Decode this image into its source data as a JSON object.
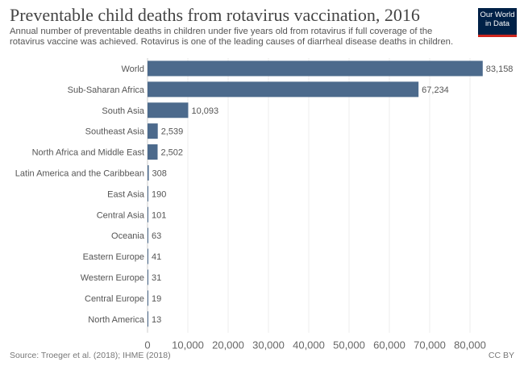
{
  "header": {
    "title": "Preventable child deaths from rotavirus vaccination, 2016",
    "subtitle": "Annual number of preventable deaths in children under five years old from rotavirus if full coverage of the rotavirus vaccine was achieved. Rotavirus is one of the leading causes of diarrheal disease deaths in children.",
    "logo_line1": "Our World",
    "logo_line2": "in Data"
  },
  "footer": {
    "source": "Source: Troeger et al. (2018); IHME (2018)",
    "license": "CC BY"
  },
  "chart_data": {
    "type": "bar",
    "orientation": "horizontal",
    "title": "Preventable child deaths from rotavirus vaccination, 2016",
    "categories": [
      "World",
      "Sub-Saharan Africa",
      "South Asia",
      "Southeast Asia",
      "North Africa and Middle East",
      "Latin America and the Caribbean",
      "East Asia",
      "Central Asia",
      "Oceania",
      "Eastern Europe",
      "Western Europe",
      "Central Europe",
      "North America"
    ],
    "values": [
      83158,
      67234,
      10093,
      2539,
      2502,
      308,
      190,
      101,
      63,
      41,
      31,
      19,
      13
    ],
    "value_labels": [
      "83,158",
      "67,234",
      "10,093",
      "2,539",
      "2,502",
      "308",
      "190",
      "101",
      "63",
      "41",
      "31",
      "19",
      "13"
    ],
    "xlim": [
      0,
      80000
    ],
    "xticks": [
      0,
      10000,
      20000,
      30000,
      40000,
      50000,
      60000,
      70000,
      80000
    ],
    "xtick_labels": [
      "0",
      "10,000",
      "20,000",
      "30,000",
      "40,000",
      "50,000",
      "60,000",
      "70,000",
      "80,000"
    ],
    "grid": true,
    "bar_color": "#4c6a8c"
  }
}
